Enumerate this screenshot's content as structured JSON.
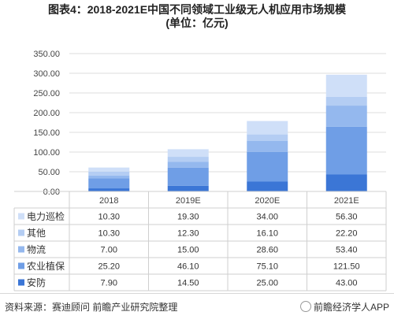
{
  "title_line1": "图表4：2018-2021E中国不同领域工业级无人机应用市场规模",
  "title_line2": "(单位：亿元)",
  "source": "资料来源：赛迪顾问 前瞻产业研究院整理",
  "watermark_account": "前瞻经济学人APP",
  "chart_data": {
    "type": "bar",
    "stacked": true,
    "categories": [
      "2018",
      "2019E",
      "2020E",
      "2021E"
    ],
    "ylim": [
      0,
      350
    ],
    "yticks": [
      "0.00",
      "50.00",
      "100.00",
      "150.00",
      "200.00",
      "250.00",
      "300.00",
      "350.00"
    ],
    "ytick_values": [
      0,
      50,
      100,
      150,
      200,
      250,
      300,
      350
    ],
    "grid": true,
    "legend": "table-left",
    "series": [
      {
        "name": "安防",
        "color": "#3b76d6",
        "values": [
          7.9,
          14.5,
          25.0,
          43.0
        ],
        "labels": [
          "7.90",
          "14.50",
          "25.00",
          "43.00"
        ]
      },
      {
        "name": "农业植保",
        "color": "#6f9ee6",
        "values": [
          25.2,
          46.1,
          75.1,
          121.5
        ],
        "labels": [
          "25.20",
          "46.10",
          "75.10",
          "121.50"
        ]
      },
      {
        "name": "物流",
        "color": "#94b8ee",
        "values": [
          7.0,
          15.0,
          28.6,
          53.4
        ],
        "labels": [
          "7.00",
          "15.00",
          "28.60",
          "53.40"
        ]
      },
      {
        "name": "其他",
        "color": "#b4cdf3",
        "values": [
          10.3,
          12.3,
          16.1,
          22.2
        ],
        "labels": [
          "10.30",
          "12.30",
          "16.10",
          "22.20"
        ]
      },
      {
        "name": "电力巡检",
        "color": "#cfdff8",
        "values": [
          10.3,
          19.3,
          34.0,
          56.3
        ],
        "labels": [
          "10.30",
          "19.30",
          "34.00",
          "56.30"
        ]
      }
    ]
  }
}
